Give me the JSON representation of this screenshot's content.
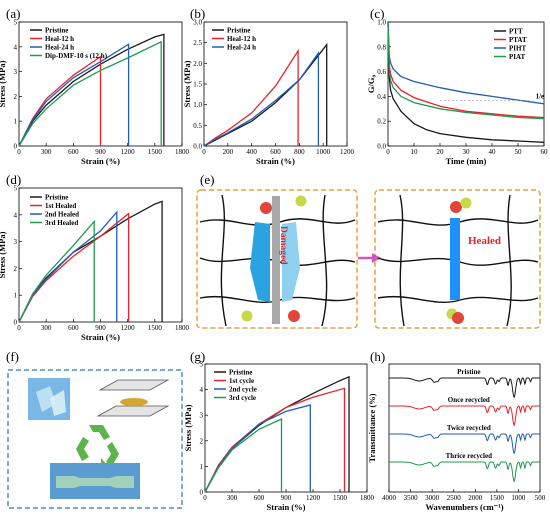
{
  "colors": {
    "black": "#1a1a1a",
    "red": "#e8242a",
    "blue": "#1f5fb4",
    "green": "#1f9a50",
    "purple": "#7b2d8c",
    "orange": "#e8a13a",
    "healed": "#e0242a"
  },
  "panels": {
    "a": {
      "label": "(a)"
    },
    "b": {
      "label": "(b)"
    },
    "c": {
      "label": "(c)"
    },
    "d": {
      "label": "(d)"
    },
    "e": {
      "label": "(e)",
      "damaged": "Damaged",
      "healed": "Healed"
    },
    "f": {
      "label": "(f)"
    },
    "g": {
      "label": "(g)"
    },
    "h": {
      "label": "(h)"
    }
  },
  "chart_data": [
    {
      "id": "a",
      "type": "line",
      "xlabel": "Strain (%)",
      "ylabel": "Stress (MPa)",
      "xlim": [
        0,
        1800
      ],
      "ylim": [
        0,
        5
      ],
      "xticks": [
        0,
        300,
        600,
        900,
        1200,
        1500,
        1800
      ],
      "yticks": [
        0,
        1,
        2,
        3,
        4,
        5
      ],
      "series": [
        {
          "name": "Pristine",
          "color": "#1a1a1a",
          "x": [
            0,
            150,
            300,
            600,
            900,
            1200,
            1500,
            1600
          ],
          "y": [
            0,
            1.0,
            1.65,
            2.6,
            3.3,
            3.9,
            4.4,
            4.5
          ],
          "break_to": 0
        },
        {
          "name": "Heal-12 h",
          "color": "#e8242a",
          "x": [
            0,
            150,
            300,
            600,
            900
          ],
          "y": [
            0,
            1.1,
            1.9,
            2.85,
            3.6
          ],
          "break_to": 0
        },
        {
          "name": "Heal-24 h",
          "color": "#1f5fb4",
          "x": [
            0,
            150,
            300,
            600,
            900,
            1210
          ],
          "y": [
            0,
            1.05,
            1.8,
            2.75,
            3.4,
            4.1
          ],
          "break_to": 0
        },
        {
          "name": "Dip-DMF-10 s (12 h)",
          "color": "#1f9a50",
          "x": [
            0,
            150,
            300,
            600,
            900,
            1200,
            1570
          ],
          "y": [
            0,
            0.9,
            1.5,
            2.45,
            3.05,
            3.55,
            4.2
          ],
          "break_to": 0
        }
      ]
    },
    {
      "id": "b",
      "type": "line",
      "xlabel": "Strain (%)",
      "ylabel": "Stress (MPa)",
      "xlim": [
        0,
        1200
      ],
      "ylim": [
        0,
        3.0
      ],
      "xticks": [
        0,
        200,
        400,
        600,
        800,
        1000,
        1200
      ],
      "yticks": [
        0.0,
        0.5,
        1.0,
        1.5,
        2.0,
        2.5,
        3.0
      ],
      "series": [
        {
          "name": "Pristine",
          "color": "#1a1a1a",
          "x": [
            0,
            100,
            200,
            400,
            600,
            800,
            1030
          ],
          "y": [
            0,
            0.15,
            0.3,
            0.6,
            1.05,
            1.6,
            2.45
          ],
          "break_to": 0
        },
        {
          "name": "Heal-12 h",
          "color": "#e8242a",
          "x": [
            0,
            100,
            200,
            400,
            600,
            790
          ],
          "y": [
            0,
            0.2,
            0.38,
            0.8,
            1.45,
            2.3
          ],
          "break_to": 0
        },
        {
          "name": "Heal-24 h",
          "color": "#1f5fb4",
          "x": [
            0,
            100,
            200,
            400,
            600,
            800,
            960
          ],
          "y": [
            0,
            0.17,
            0.32,
            0.65,
            1.1,
            1.6,
            2.25
          ],
          "break_to": 0
        }
      ]
    },
    {
      "id": "c",
      "type": "line",
      "xlabel": "Time (min)",
      "ylabel": "G/G₀",
      "xlim": [
        0,
        60
      ],
      "ylim": [
        0.0,
        1.0
      ],
      "xticks": [
        0,
        10,
        20,
        30,
        40,
        50,
        60
      ],
      "yticks": [
        0.0,
        0.2,
        0.4,
        0.6,
        0.8,
        1.0
      ],
      "annotation": "1/e",
      "series": [
        {
          "name": "PTT",
          "color": "#1a1a1a",
          "x": [
            0,
            0.5,
            1,
            2,
            5,
            10,
            15,
            20,
            30,
            40,
            50,
            60
          ],
          "y": [
            1.0,
            0.55,
            0.45,
            0.38,
            0.28,
            0.18,
            0.13,
            0.1,
            0.07,
            0.05,
            0.04,
            0.03
          ]
        },
        {
          "name": "PTAT",
          "color": "#e8242a",
          "x": [
            0,
            0.5,
            1,
            2,
            5,
            10,
            20,
            30,
            40,
            50,
            60
          ],
          "y": [
            1.0,
            0.65,
            0.58,
            0.52,
            0.45,
            0.39,
            0.32,
            0.28,
            0.26,
            0.24,
            0.23
          ]
        },
        {
          "name": "PIHT",
          "color": "#1f5fb4",
          "x": [
            0,
            0.5,
            1,
            2,
            5,
            10,
            20,
            30,
            40,
            50,
            60
          ],
          "y": [
            1.0,
            0.72,
            0.67,
            0.62,
            0.56,
            0.52,
            0.47,
            0.43,
            0.4,
            0.37,
            0.34
          ]
        },
        {
          "name": "PIAT",
          "color": "#1f9a50",
          "x": [
            0,
            0.5,
            1,
            2,
            5,
            10,
            20,
            30,
            40,
            50,
            60
          ],
          "y": [
            1.0,
            0.6,
            0.53,
            0.47,
            0.4,
            0.35,
            0.3,
            0.27,
            0.25,
            0.23,
            0.22
          ]
        }
      ]
    },
    {
      "id": "d",
      "type": "line",
      "xlabel": "Strain (%)",
      "ylabel": "Stress (MPa)",
      "xlim": [
        0,
        1800
      ],
      "ylim": [
        0,
        5
      ],
      "xticks": [
        0,
        300,
        600,
        900,
        1200,
        1500,
        1800
      ],
      "yticks": [
        0,
        1,
        2,
        3,
        4,
        5
      ],
      "series": [
        {
          "name": "Pristine",
          "color": "#1a1a1a",
          "x": [
            0,
            150,
            300,
            600,
            900,
            1200,
            1500,
            1580
          ],
          "y": [
            0,
            1.0,
            1.65,
            2.6,
            3.2,
            3.85,
            4.4,
            4.5
          ],
          "break_to": 0
        },
        {
          "name": "1st Healed",
          "color": "#e8242a",
          "x": [
            0,
            150,
            300,
            600,
            900,
            1210
          ],
          "y": [
            0,
            0.95,
            1.55,
            2.45,
            3.2,
            4.05
          ],
          "break_to": 0
        },
        {
          "name": "2nd Healed",
          "color": "#1f5fb4",
          "x": [
            0,
            150,
            300,
            600,
            900,
            1080
          ],
          "y": [
            0,
            1.0,
            1.6,
            2.6,
            3.4,
            4.1
          ],
          "break_to": 0
        },
        {
          "name": "3rd Healed",
          "color": "#1f9a50",
          "x": [
            0,
            150,
            300,
            600,
            830
          ],
          "y": [
            0,
            1.05,
            1.75,
            2.85,
            3.75
          ],
          "break_to": 0
        }
      ]
    },
    {
      "id": "g",
      "type": "line",
      "xlabel": "Strain (%)",
      "ylabel": "Stress (MPa)",
      "xlim": [
        0,
        1800
      ],
      "ylim": [
        0,
        5
      ],
      "xticks": [
        0,
        300,
        600,
        900,
        1200,
        1500,
        1800
      ],
      "yticks": [
        0,
        1,
        2,
        3,
        4,
        5
      ],
      "series": [
        {
          "name": "Pristine",
          "color": "#1a1a1a",
          "x": [
            0,
            150,
            300,
            600,
            900,
            1200,
            1500,
            1600
          ],
          "y": [
            0,
            1.0,
            1.7,
            2.6,
            3.3,
            3.85,
            4.35,
            4.5
          ],
          "break_to": 0
        },
        {
          "name": "1st cycle",
          "color": "#e8242a",
          "x": [
            0,
            150,
            300,
            600,
            900,
            1200,
            1550
          ],
          "y": [
            0,
            1.05,
            1.75,
            2.65,
            3.3,
            3.7,
            4.05
          ],
          "break_to": 0
        },
        {
          "name": "2nd cycle",
          "color": "#1f5fb4",
          "x": [
            0,
            150,
            300,
            600,
            900,
            1170
          ],
          "y": [
            0,
            1.0,
            1.7,
            2.65,
            3.15,
            3.4
          ],
          "break_to": 0
        },
        {
          "name": "3rd cycle",
          "color": "#1f9a50",
          "x": [
            0,
            150,
            300,
            600,
            850
          ],
          "y": [
            0,
            0.95,
            1.65,
            2.45,
            2.85
          ],
          "break_to": 0
        }
      ]
    },
    {
      "id": "h",
      "type": "line",
      "xlabel": "Wavenumbers (cm⁻¹)",
      "ylabel": "Transmittance (%)",
      "xlim": [
        4000,
        500
      ],
      "xticks": [
        4000,
        3500,
        3000,
        2500,
        2000,
        1500,
        1000,
        500
      ],
      "series": [
        {
          "name": "Pristine",
          "color": "#1a1a1a",
          "offset": 3
        },
        {
          "name": "Once recycled",
          "color": "#e8242a",
          "offset": 2
        },
        {
          "name": "Twice recycled",
          "color": "#1f5fb4",
          "offset": 1
        },
        {
          "name": "Thrice recycled",
          "color": "#1f9a50",
          "offset": 0
        }
      ]
    }
  ],
  "legend_text": {
    "a": [
      "Pristine",
      "Heal-12 h",
      "Heal-24 h",
      "Dip-DMF-10 s (12 h)"
    ],
    "b": [
      "Pristine",
      "Heal-12 h",
      "Heal-24 h"
    ],
    "c": [
      "PTT",
      "PTAT",
      "PIHT",
      "PIAT"
    ],
    "d": [
      "Pristine",
      "1st Healed",
      "2nd Healed",
      "3rd Healed"
    ],
    "g": [
      "Pristine",
      "1st cycle",
      "2nd cycle",
      "3rd cycle"
    ]
  }
}
